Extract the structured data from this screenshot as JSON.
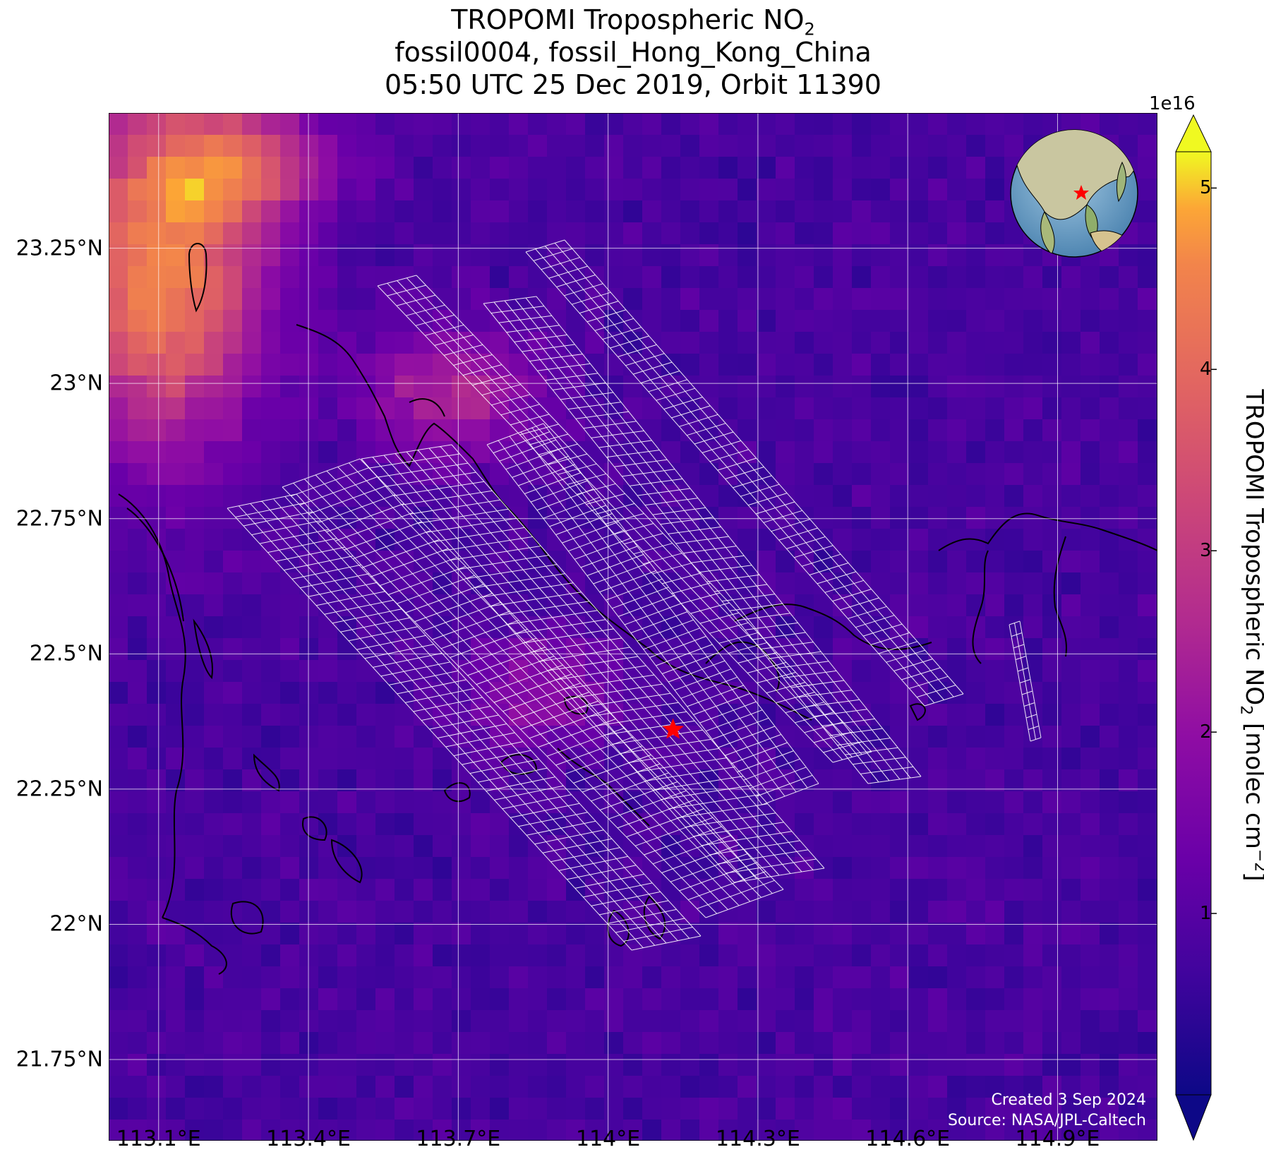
{
  "title": {
    "line1_prefix": "TROPOMI Tropospheric NO",
    "line1_sub": "2",
    "line2": "fossil0004, fossil_Hong_Kong_China",
    "line3": "05:50 UTC 25 Dec 2019, Orbit 11390"
  },
  "map": {
    "lon_range": [
      113.0,
      115.1
    ],
    "lat_range": [
      21.6,
      23.5
    ],
    "x_ticks": [
      "113.1°E",
      "113.4°E",
      "113.7°E",
      "114°E",
      "114.3°E",
      "114.6°E",
      "114.9°E"
    ],
    "x_tick_values": [
      113.1,
      113.4,
      113.7,
      114.0,
      114.3,
      114.6,
      114.9
    ],
    "y_ticks": [
      "23.25°N",
      "23°N",
      "22.75°N",
      "22.5°N",
      "22.25°N",
      "22°N",
      "21.75°N"
    ],
    "y_tick_values": [
      23.25,
      23.0,
      22.75,
      22.5,
      22.25,
      22.0,
      21.75
    ],
    "target_marker": {
      "lon": 114.13,
      "lat": 22.36,
      "color": "#ff0000",
      "icon": "star-icon"
    },
    "background_color": "#1c0d86"
  },
  "colorbar": {
    "multiplier": "1e16",
    "ticks": [
      "1",
      "2",
      "3",
      "4",
      "5"
    ],
    "tick_values": [
      1,
      2,
      3,
      4,
      5
    ],
    "range": [
      0,
      5.2
    ],
    "label_prefix": "TROPOMI Tropospheric NO",
    "label_sub": "2",
    "label_mid": " [molec cm",
    "label_sup": "−2",
    "label_suffix": "]",
    "colormap": "plasma"
  },
  "credit": {
    "line1": "Created 3 Sep 2024",
    "line2": "Source: NASA/JPL-Caltech"
  },
  "inset_globe": {
    "icon": "globe-icon",
    "marker": "star-icon"
  }
}
